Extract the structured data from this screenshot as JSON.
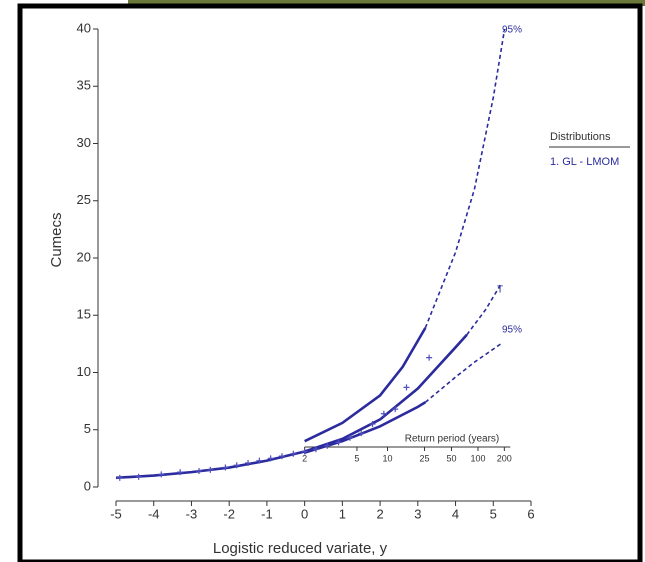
{
  "chart_data": {
    "type": "line",
    "xlabel": "Logistic reduced variate, y",
    "ylabel": "Cumecs",
    "xlim": [
      -5,
      6
    ],
    "ylim": [
      0,
      40
    ],
    "xticks": [
      -5,
      -4,
      -3,
      -2,
      -1,
      0,
      1,
      2,
      3,
      4,
      5,
      6
    ],
    "yticks": [
      0,
      5,
      10,
      15,
      20,
      25,
      30,
      35,
      40
    ],
    "series": [
      {
        "color": "#2b2b9e",
        "dashed": false,
        "x": [
          -5,
          -4,
          -3,
          -2,
          -1,
          0,
          1,
          2,
          3,
          4,
          4.3
        ],
        "values": [
          0.8,
          1.0,
          1.3,
          1.7,
          2.3,
          3.1,
          4.2,
          5.9,
          8.6,
          12.2,
          13.3
        ]
      },
      {
        "color": "#2b2b9e",
        "dashed": true,
        "x": [
          4.3,
          4.8,
          5.2
        ],
        "values": [
          13.3,
          15.5,
          17.7
        ]
      },
      {
        "color": "#2b2b9e",
        "dashed": false,
        "x": [
          0,
          1,
          2,
          2.6,
          3.2
        ],
        "values": [
          4.0,
          5.6,
          8.0,
          10.5,
          13.9
        ]
      },
      {
        "color": "#2b2b9e",
        "dashed": true,
        "x": [
          3.2,
          4,
          4.5,
          5,
          5.3
        ],
        "values": [
          13.9,
          20.5,
          26,
          34,
          40
        ]
      },
      {
        "color": "#2b2b9e",
        "dashed": false,
        "x": [
          0,
          1,
          2,
          3,
          3.2
        ],
        "values": [
          3.0,
          4.0,
          5.3,
          7.0,
          7.4
        ]
      },
      {
        "color": "#2b2b9e",
        "dashed": true,
        "x": [
          3.2,
          4,
          4.5,
          5.2
        ],
        "values": [
          7.4,
          9.6,
          10.9,
          12.5
        ]
      }
    ],
    "points": {
      "color": "#5050c0",
      "x": [
        -4.9,
        -4.4,
        -3.8,
        -3.3,
        -2.8,
        -2.5,
        -2.1,
        -1.8,
        -1.5,
        -1.2,
        -0.9,
        -0.6,
        -0.3,
        0,
        0.3,
        0.6,
        0.9,
        1.2,
        1.5,
        1.8,
        2.1,
        2.4,
        2.7,
        3.3
      ],
      "values": [
        0.8,
        0.9,
        1.1,
        1.3,
        1.4,
        1.5,
        1.7,
        1.9,
        2.1,
        2.3,
        2.5,
        2.7,
        2.9,
        3.1,
        3.3,
        3.6,
        3.9,
        4.3,
        4.7,
        5.5,
        6.4,
        6.8,
        8.7,
        11.3
      ]
    },
    "return_period": {
      "title": "Return period (years)",
      "ticks": [
        {
          "value": 0,
          "label": "2"
        },
        {
          "value": 1.386,
          "label": "5"
        },
        {
          "value": 2.197,
          "label": "10"
        },
        {
          "value": 3.178,
          "label": "25"
        },
        {
          "value": 3.892,
          "label": "50"
        },
        {
          "value": 4.595,
          "label": "100"
        },
        {
          "value": 5.293,
          "label": "200"
        }
      ]
    },
    "annotations": [
      "95%",
      "95%",
      "T"
    ],
    "legend": {
      "title": "Distributions",
      "entries": [
        "1. GL - LMOM"
      ]
    }
  }
}
